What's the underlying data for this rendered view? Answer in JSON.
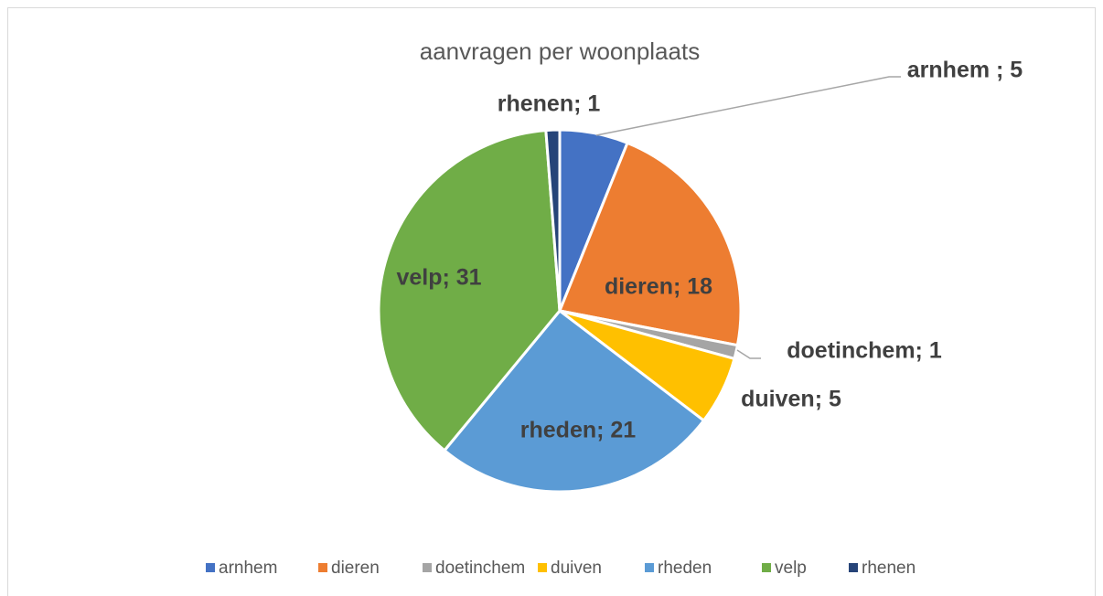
{
  "chart_data": {
    "type": "pie",
    "title": "aanvragen per woonplaats",
    "categories": [
      "arnhem",
      "dieren",
      "doetinchem",
      "duiven",
      "rheden",
      "velp",
      "rhenen"
    ],
    "values": [
      5,
      18,
      1,
      5,
      21,
      31,
      1
    ],
    "value_labels": [
      "arnhem ; 5",
      "dieren; 18",
      "doetinchem; 1",
      "duiven; 5",
      "rheden; 21",
      "velp; 31",
      "rhenen; 1"
    ],
    "colors": [
      "#4472c4",
      "#ed7d31",
      "#a5a5a5",
      "#ffc000",
      "#5b9bd5",
      "#70ad47",
      "#264478"
    ],
    "legend": "bottom"
  }
}
